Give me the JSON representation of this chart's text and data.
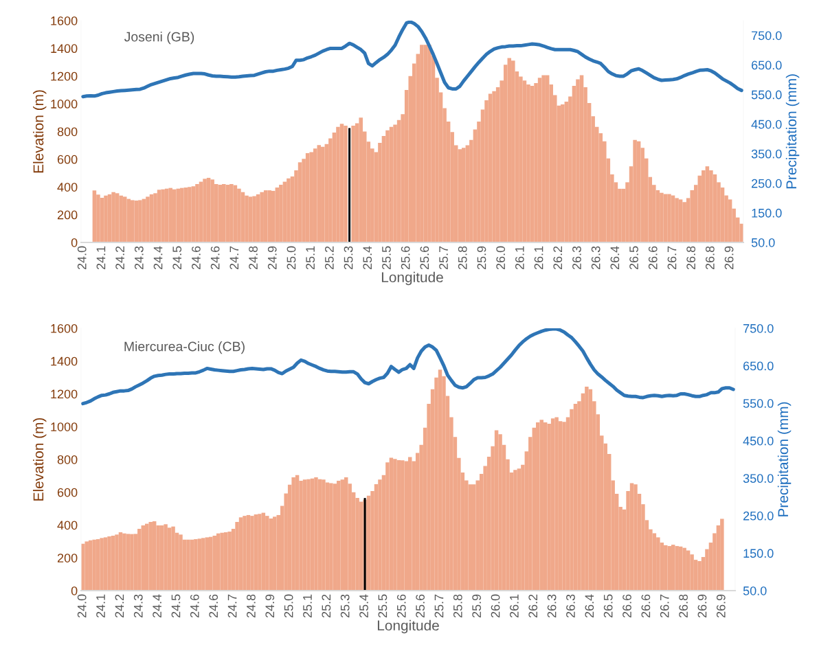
{
  "chart_data": [
    {
      "type": "bar",
      "title": "Joseni (GB)",
      "xlabel": "Longitude",
      "ylabel": "Elevation (m)",
      "y2label": "Precipitation (mm)",
      "categories": [
        "24.0",
        null,
        null,
        null,
        null,
        "24.1",
        null,
        null,
        null,
        null,
        "24.2",
        null,
        null,
        null,
        null,
        "24.3",
        null,
        null,
        null,
        null,
        "24.4",
        null,
        null,
        null,
        null,
        "24.5",
        null,
        null,
        null,
        null,
        "24.6",
        null,
        null,
        null,
        null,
        "24.6",
        null,
        null,
        null,
        null,
        "24.7",
        null,
        null,
        null,
        null,
        "24.8",
        null,
        null,
        null,
        null,
        "24.9",
        null,
        null,
        null,
        null,
        "25.0",
        null,
        null,
        null,
        null,
        "25.1",
        null,
        null,
        null,
        null,
        "25.2",
        null,
        null,
        null,
        null,
        "25.3",
        null,
        null,
        null,
        null,
        "25.4",
        null,
        null,
        null,
        null,
        "25.5",
        null,
        null,
        null,
        null,
        "25.6",
        null,
        null,
        null,
        null,
        "25.6",
        null,
        null,
        null,
        null,
        "25.7",
        null,
        null,
        null,
        null,
        "25.8",
        null,
        null,
        null,
        null,
        "25.9",
        null,
        null,
        null,
        null,
        "26.0",
        null,
        null,
        null,
        null,
        "26.1",
        null,
        null,
        null,
        null,
        "26.1",
        null,
        null,
        null,
        null,
        "26.2",
        null,
        null,
        null,
        null,
        "26.3",
        null,
        null,
        null,
        null,
        "26.3",
        null,
        null,
        null,
        null,
        "26.4",
        null,
        null,
        null,
        null,
        "26.5",
        null,
        null,
        null,
        null,
        "26.6",
        null,
        null,
        null,
        null,
        "26.7",
        null,
        null,
        null,
        null,
        "26.8",
        null,
        null,
        null,
        null,
        "26.8",
        null,
        null,
        null,
        null,
        "26.9",
        null,
        null,
        null
      ],
      "series": [
        {
          "color": "#f0a88a",
          "values": [
            null,
            null,
            null,
            375,
            345,
            322,
            338,
            347,
            363,
            355,
            338,
            330,
            314,
            305,
            302,
            305,
            314,
            330,
            347,
            355,
            380,
            383,
            388,
            393,
            383,
            388,
            393,
            396,
            400,
            405,
            421,
            438,
            459,
            466,
            454,
            421,
            416,
            421,
            416,
            421,
            413,
            388,
            363,
            338,
            330,
            334,
            347,
            363,
            376,
            376,
            372,
            396,
            416,
            438,
            462,
            476,
            520,
            578,
            603,
            644,
            652,
            677,
            702,
            690,
            710,
            751,
            793,
            834,
            856,
            842,
            null,
            842,
            860,
            900,
            800,
            727,
            677,
            652,
            718,
            768,
            809,
            834,
            850,
            883,
            925,
            1100,
            1200,
            1290,
            1360,
            1425,
            1425,
            1425,
            1349,
            1187,
            1082,
            968,
            872,
            796,
            701,
            672,
            682,
            701,
            739,
            815,
            872,
            958,
            1025,
            1072,
            1091,
            1120,
            1168,
            1282,
            1330,
            1311,
            1234,
            1196,
            1168,
            1139,
            1130,
            1149,
            1187,
            1206,
            1206,
            1139,
            1063,
            987,
            996,
            1015,
            1053,
            1130,
            1177,
            1206,
            1120,
            1006,
            910,
            834,
            787,
            730,
            606,
            491,
            434,
            387,
            387,
            434,
            549,
            739,
            730,
            682,
            606,
            472,
            415,
            377,
            358,
            349,
            349,
            339,
            320,
            310,
            291,
            320,
            377,
            415,
            482,
            520,
            549,
            520,
            491,
            434,
            396,
            339,
            310,
            244,
            180,
            135
          ]
        },
        {
          "color": "#000000",
          "values": [
            null,
            null,
            null,
            null,
            null,
            null,
            null,
            null,
            null,
            null,
            null,
            null,
            null,
            null,
            null,
            null,
            null,
            null,
            null,
            null,
            null,
            null,
            null,
            null,
            null,
            null,
            null,
            null,
            null,
            null,
            null,
            null,
            null,
            null,
            null,
            null,
            null,
            null,
            null,
            null,
            null,
            null,
            null,
            null,
            null,
            null,
            null,
            null,
            null,
            null,
            null,
            null,
            null,
            null,
            null,
            null,
            null,
            null,
            null,
            null,
            null,
            null,
            null,
            null,
            null,
            null,
            null,
            null,
            null,
            null,
            825,
            null,
            null,
            null,
            null,
            null,
            null,
            null,
            null,
            null,
            null,
            null,
            null,
            null,
            null,
            null,
            null,
            null,
            null,
            null,
            null,
            null,
            null,
            null,
            null,
            null,
            null,
            null,
            null,
            null,
            null,
            null,
            null,
            null,
            null,
            null,
            null,
            null,
            null,
            null,
            null,
            null,
            null,
            null,
            null,
            null,
            null,
            null,
            null,
            null,
            null,
            null,
            null,
            null,
            null,
            null,
            null,
            null,
            null,
            null,
            null,
            null,
            null,
            null,
            null,
            null,
            null,
            null,
            null,
            null,
            null,
            null,
            null,
            null,
            null,
            null,
            null,
            null,
            null,
            null,
            null,
            null,
            null,
            null,
            null,
            null,
            null,
            null,
            null,
            null,
            null,
            null,
            null,
            null,
            null,
            null,
            null,
            null,
            null,
            null,
            null,
            null,
            null,
            null
          ]
        },
        {
          "type": "line",
          "axis": "y2",
          "color": "#2e75b6",
          "values": [
            543,
            545,
            546,
            545,
            548,
            553,
            556,
            558,
            560,
            562,
            563,
            564,
            565,
            566,
            567,
            568,
            572,
            578,
            584,
            588,
            592,
            596,
            600,
            604,
            606,
            608,
            612,
            616,
            619,
            621,
            621,
            621,
            620,
            616,
            613,
            612,
            612,
            611,
            610,
            609,
            609,
            610,
            612,
            613,
            614,
            615,
            619,
            623,
            627,
            629,
            629,
            632,
            634,
            636,
            639,
            645,
            666,
            666,
            668,
            674,
            678,
            683,
            690,
            697,
            702,
            706,
            706,
            706,
            706,
            714,
            723,
            718,
            710,
            702,
            690,
            655,
            647,
            658,
            668,
            676,
            686,
            700,
            717,
            745,
            770,
            792,
            796,
            790,
            780,
            763,
            741,
            714,
            686,
            655,
            623,
            591,
            573,
            569,
            569,
            578,
            596,
            612,
            628,
            644,
            659,
            673,
            686,
            696,
            704,
            708,
            711,
            712,
            714,
            714,
            715,
            715,
            717,
            719,
            721,
            720,
            718,
            714,
            709,
            705,
            702,
            702,
            702,
            702,
            702,
            699,
            695,
            686,
            677,
            670,
            664,
            660,
            655,
            642,
            628,
            620,
            614,
            612,
            612,
            620,
            630,
            634,
            637,
            631,
            623,
            615,
            607,
            602,
            598,
            599,
            600,
            601,
            603,
            608,
            614,
            619,
            623,
            628,
            632,
            633,
            634,
            630,
            623,
            613,
            603,
            596,
            589,
            580,
            570,
            564
          ]
        }
      ],
      "ylim": [
        0,
        1600
      ],
      "yticks": [
        0,
        200,
        400,
        600,
        800,
        1000,
        1200,
        1400,
        1600
      ],
      "y2lim": [
        50,
        800
      ],
      "y2ticks": [
        {
          "value": 50,
          "label": "50.0"
        },
        {
          "value": 150,
          "label": "150.0"
        },
        {
          "value": 250,
          "label": "250.0"
        },
        {
          "value": 350,
          "label": "350.0"
        },
        {
          "value": 450,
          "label": "450.0"
        },
        {
          "value": 550,
          "label": "550.0"
        },
        {
          "value": 650,
          "label": "650.0"
        },
        {
          "value": 750,
          "label": "750.0"
        }
      ]
    },
    {
      "type": "bar",
      "title": "Miercurea-Ciuc (CB)",
      "xlabel": "Longitude",
      "ylabel": "Elevation (m)",
      "y2label": "Precipitation (mm)",
      "categories": [
        "24.0",
        null,
        null,
        null,
        null,
        "24.1",
        null,
        null,
        null,
        null,
        "24.2",
        null,
        null,
        null,
        null,
        "24.3",
        null,
        null,
        null,
        null,
        "24.4",
        null,
        null,
        null,
        null,
        "24.5",
        null,
        null,
        null,
        null,
        "24.6",
        null,
        null,
        null,
        null,
        "24.6",
        null,
        null,
        null,
        null,
        "24.7",
        null,
        null,
        null,
        null,
        "24.8",
        null,
        null,
        null,
        null,
        "24.9",
        null,
        null,
        null,
        null,
        "25.0",
        null,
        null,
        null,
        null,
        "25.1",
        null,
        null,
        null,
        null,
        "25.2",
        null,
        null,
        null,
        null,
        "25.3",
        null,
        null,
        null,
        null,
        "25.4",
        null,
        null,
        null,
        null,
        "25.5",
        null,
        null,
        null,
        null,
        "25.6",
        null,
        null,
        null,
        null,
        "25.6",
        null,
        null,
        null,
        null,
        "25.7",
        null,
        null,
        null,
        null,
        "25.8",
        null,
        null,
        null,
        null,
        "25.9",
        null,
        null,
        null,
        null,
        "26.0",
        null,
        null,
        null,
        null,
        "26.1",
        null,
        null,
        null,
        null,
        "26.2",
        null,
        null,
        null,
        null,
        "26.3",
        null,
        null,
        null,
        null,
        "26.3",
        null,
        null,
        null,
        null,
        "26.4",
        null,
        null,
        null,
        null,
        "26.5",
        null,
        null,
        null,
        null,
        "26.6",
        null,
        null,
        null,
        null,
        "26.6",
        null,
        null,
        null,
        null,
        "26.7",
        null,
        null,
        null,
        null,
        "26.8",
        null,
        null,
        null,
        null,
        "26.9",
        null,
        null,
        null,
        null,
        "26.9",
        null,
        null,
        null
      ],
      "series": [
        {
          "color": "#f0a88a",
          "values": [
            286,
            300,
            307,
            311,
            314,
            321,
            325,
            331,
            335,
            342,
            356,
            349,
            346,
            345,
            346,
            377,
            398,
            408,
            419,
            423,
            398,
            398,
            405,
            384,
            391,
            353,
            342,
            311,
            311,
            311,
            314,
            317,
            321,
            325,
            328,
            335,
            349,
            353,
            356,
            360,
            377,
            419,
            447,
            456,
            461,
            456,
            465,
            468,
            475,
            456,
            440,
            451,
            461,
            517,
            593,
            646,
            691,
            705,
            670,
            677,
            680,
            684,
            691,
            680,
            677,
            660,
            656,
            652,
            670,
            677,
            691,
            652,
            600,
            565,
            542,
            555,
            579,
            607,
            649,
            677,
            705,
            782,
            810,
            803,
            796,
            795,
            790,
            815,
            790,
            840,
            889,
            994,
            1139,
            1228,
            1300,
            1348,
            1308,
            1187,
            1058,
            937,
            809,
            720,
            672,
            648,
            648,
            672,
            712,
            760,
            817,
            881,
            978,
            954,
            889,
            801,
            720,
            736,
            744,
            768,
            849,
            937,
            994,
            1026,
            1042,
            1026,
            1018,
            1050,
            1058,
            1034,
            1029,
            1058,
            1107,
            1139,
            1155,
            1203,
            1244,
            1228,
            1155,
            1075,
            946,
            897,
            833,
            672,
            591,
            511,
            495,
            607,
            656,
            648,
            591,
            527,
            430,
            374,
            350,
            325,
            293,
            277,
            272,
            280,
            272,
            269,
            261,
            245,
            221,
            188,
            180,
            205,
            253,
            293,
            350,
            398,
            438,
            null,
            null,
            null
          ]
        },
        {
          "color": "#000000",
          "values": [
            null,
            null,
            null,
            null,
            null,
            null,
            null,
            null,
            null,
            null,
            null,
            null,
            null,
            null,
            null,
            null,
            null,
            null,
            null,
            null,
            null,
            null,
            null,
            null,
            null,
            null,
            null,
            null,
            null,
            null,
            null,
            null,
            null,
            null,
            null,
            null,
            null,
            null,
            null,
            null,
            null,
            null,
            null,
            null,
            null,
            null,
            null,
            null,
            null,
            null,
            null,
            null,
            null,
            null,
            null,
            null,
            null,
            null,
            null,
            null,
            null,
            null,
            null,
            null,
            null,
            null,
            null,
            null,
            null,
            null,
            null,
            null,
            null,
            null,
            null,
            565,
            null,
            null,
            null,
            null,
            null,
            null,
            null,
            null,
            null,
            null,
            null,
            null,
            null,
            null,
            null,
            null,
            null,
            null,
            null,
            null,
            null,
            null,
            null,
            null,
            null,
            null,
            null,
            null,
            null,
            null,
            null,
            null,
            null,
            null,
            null,
            null,
            null,
            null,
            null,
            null,
            null,
            null,
            null,
            null,
            null,
            null,
            null,
            null,
            null,
            null,
            null,
            null,
            null,
            null,
            null,
            null,
            null,
            null,
            null,
            null,
            null,
            null,
            null,
            null,
            null,
            null,
            null,
            null,
            null,
            null,
            null,
            null,
            null,
            null,
            null,
            null,
            null,
            null,
            null,
            null,
            null,
            null,
            null,
            null,
            null,
            null,
            null,
            null,
            null,
            null,
            null,
            null,
            null,
            null,
            null,
            null,
            null,
            null
          ]
        },
        {
          "type": "line",
          "axis": "y2",
          "color": "#2e75b6",
          "values": [
            549,
            552,
            556,
            562,
            567,
            571,
            572,
            575,
            579,
            581,
            583,
            583,
            584,
            588,
            594,
            599,
            604,
            610,
            617,
            622,
            624,
            625,
            627,
            628,
            628,
            629,
            629,
            630,
            630,
            631,
            631,
            634,
            638,
            643,
            641,
            639,
            638,
            637,
            636,
            635,
            635,
            637,
            639,
            640,
            642,
            643,
            642,
            641,
            640,
            642,
            642,
            638,
            632,
            629,
            636,
            641,
            646,
            657,
            665,
            662,
            656,
            652,
            648,
            643,
            639,
            636,
            635,
            635,
            634,
            633,
            633,
            634,
            634,
            628,
            615,
            605,
            602,
            608,
            613,
            617,
            619,
            630,
            648,
            640,
            633,
            640,
            643,
            653,
            643,
            671,
            689,
            700,
            705,
            700,
            691,
            671,
            650,
            625,
            611,
            598,
            593,
            591,
            594,
            603,
            613,
            618,
            618,
            619,
            623,
            628,
            637,
            646,
            657,
            668,
            679,
            692,
            704,
            714,
            722,
            729,
            734,
            738,
            742,
            745,
            747,
            748,
            748,
            745,
            740,
            732,
            725,
            714,
            702,
            689,
            671,
            654,
            639,
            628,
            620,
            611,
            603,
            595,
            585,
            578,
            571,
            569,
            568,
            568,
            566,
            565,
            568,
            570,
            571,
            570,
            568,
            570,
            571,
            570,
            571,
            575,
            575,
            573,
            570,
            568,
            568,
            571,
            573,
            578,
            578,
            580,
            589,
            591,
            591,
            587
          ]
        }
      ],
      "ylim": [
        0,
        1600
      ],
      "yticks": [
        0,
        200,
        400,
        600,
        800,
        1000,
        1200,
        1400,
        1600
      ],
      "y2lim": [
        50,
        750
      ],
      "y2ticks": [
        {
          "value": 50,
          "label": "50.0"
        },
        {
          "value": 150,
          "label": "150.0"
        },
        {
          "value": 250,
          "label": "250.0"
        },
        {
          "value": 350,
          "label": "350.0"
        },
        {
          "value": 450,
          "label": "450.0"
        },
        {
          "value": 550,
          "label": "550.0"
        },
        {
          "value": 650,
          "label": "650.0"
        },
        {
          "value": 750,
          "label": "750.0"
        }
      ]
    }
  ]
}
